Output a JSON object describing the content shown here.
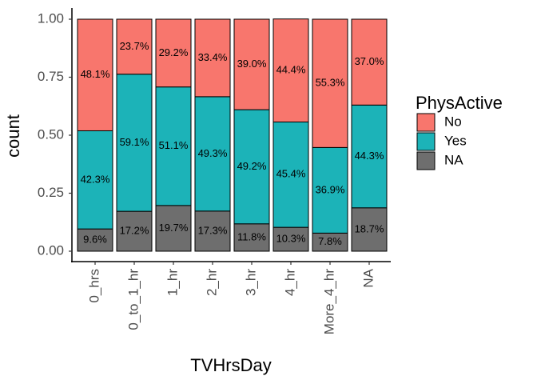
{
  "chart_data": {
    "type": "stacked-bar",
    "x_label": "TVHrsDay",
    "y_label": "count",
    "legend_title": "PhysActive",
    "categories": [
      "0_hrs",
      "0_to_1_hr",
      "1_hr",
      "2_hr",
      "3_hr",
      "4_hr",
      "More_4_hr",
      "NA"
    ],
    "series": [
      {
        "name": "No",
        "color": "#F8766D",
        "values": [
          0.481,
          0.237,
          0.292,
          0.334,
          0.39,
          0.444,
          0.553,
          0.37
        ],
        "value_labels": [
          "48.1%",
          "23.7%",
          "29.2%",
          "33.4%",
          "39.0%",
          "44.4%",
          "55.3%",
          "37.0%"
        ]
      },
      {
        "name": "Yes",
        "color": "#1CB3B8",
        "values": [
          0.423,
          0.591,
          0.511,
          0.493,
          0.492,
          0.454,
          0.369,
          0.443
        ],
        "value_labels": [
          "42.3%",
          "59.1%",
          "51.1%",
          "49.3%",
          "49.2%",
          "45.4%",
          "36.9%",
          "44.3%"
        ]
      },
      {
        "name": "NA",
        "color": "#6E6E6E",
        "values": [
          0.096,
          0.172,
          0.197,
          0.173,
          0.118,
          0.103,
          0.078,
          0.187
        ],
        "value_labels": [
          "9.6%",
          "17.2%",
          "19.7%",
          "17.3%",
          "11.8%",
          "10.3%",
          "7.8%",
          "18.7%"
        ]
      }
    ],
    "ylim": [
      0,
      1
    ],
    "yticks": [
      {
        "value": 0,
        "label": "0.00"
      },
      {
        "value": 0.25,
        "label": "0.25"
      },
      {
        "value": 0.5,
        "label": "0.50"
      },
      {
        "value": 0.75,
        "label": "0.75"
      },
      {
        "value": 1,
        "label": "1.00"
      }
    ],
    "legend_position": "right"
  }
}
